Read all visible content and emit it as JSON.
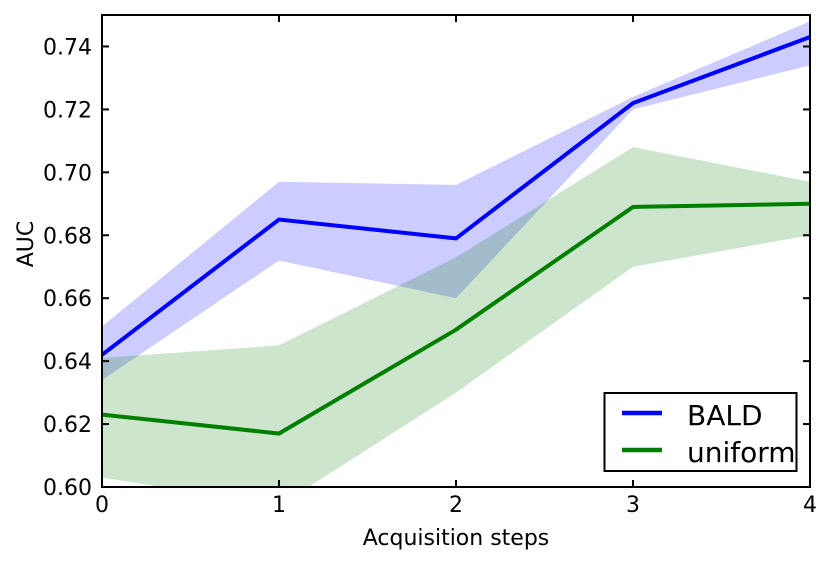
{
  "figure": {
    "background": "#ffffff",
    "spine_color": "#000000"
  },
  "chart_data": {
    "type": "line",
    "title": "",
    "xlabel": "Acquisition steps",
    "ylabel": "AUC",
    "xlim": [
      0,
      4
    ],
    "ylim": [
      0.6,
      0.75
    ],
    "grid": false,
    "x": [
      0,
      1,
      2,
      3,
      4
    ],
    "xticks": [
      0,
      1,
      2,
      3,
      4
    ],
    "xtick_labels": [
      "0",
      "1",
      "2",
      "3",
      "4"
    ],
    "yticks": [
      0.6,
      0.62,
      0.64,
      0.66,
      0.68,
      0.7,
      0.72,
      0.74
    ],
    "ytick_labels": [
      "0.60",
      "0.62",
      "0.64",
      "0.66",
      "0.68",
      "0.70",
      "0.72",
      "0.74"
    ],
    "legend": {
      "position": "lower right",
      "border_color": "#000000",
      "background": "#ffffff",
      "entries": [
        "BALD",
        "uniform"
      ]
    },
    "series": [
      {
        "name": "BALD",
        "color": "#0000ff",
        "band_alpha": 0.2,
        "values": [
          0.642,
          0.685,
          0.679,
          0.722,
          0.743
        ],
        "band_low": [
          0.634,
          0.672,
          0.66,
          0.72,
          0.734
        ],
        "band_high": [
          0.651,
          0.697,
          0.696,
          0.724,
          0.748
        ]
      },
      {
        "name": "uniform",
        "color": "#007f00",
        "band_alpha": 0.2,
        "values": [
          0.623,
          0.617,
          0.65,
          0.689,
          0.69
        ],
        "band_low": [
          0.603,
          0.594,
          0.63,
          0.67,
          0.68
        ],
        "band_high": [
          0.641,
          0.645,
          0.673,
          0.708,
          0.697
        ]
      }
    ]
  }
}
